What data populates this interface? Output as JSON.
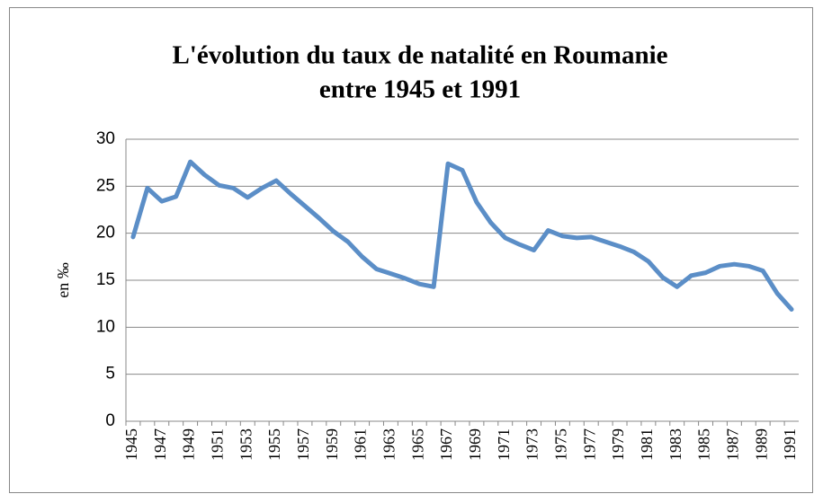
{
  "chart_data": {
    "type": "line",
    "title": [
      "L'évolution du taux de natalité en Roumanie",
      "entre 1945 et 1991"
    ],
    "y_label": "en ‰",
    "categories": [
      "1945",
      null,
      "1947",
      null,
      "1949",
      null,
      "1951",
      null,
      "1953",
      null,
      "1955",
      null,
      "1957",
      null,
      "1959",
      null,
      "1961",
      null,
      "1963",
      null,
      "1965",
      null,
      "1967",
      null,
      "1969",
      null,
      "1971",
      null,
      "1973",
      null,
      "1975",
      null,
      "1977",
      null,
      "1979",
      null,
      "1981",
      null,
      "1983",
      null,
      "1985",
      null,
      "1987",
      null,
      "1989",
      null,
      "1991"
    ],
    "values": [
      19.6,
      24.8,
      23.4,
      23.9,
      27.6,
      26.2,
      25.1,
      24.8,
      23.8,
      24.8,
      25.6,
      24.2,
      22.9,
      21.6,
      20.2,
      19.1,
      17.5,
      16.2,
      15.7,
      15.2,
      14.6,
      14.3,
      27.4,
      26.7,
      23.3,
      21.1,
      19.5,
      18.8,
      18.2,
      20.3,
      19.7,
      19.5,
      19.6,
      19.1,
      18.6,
      18.0,
      17.0,
      15.3,
      14.3,
      15.5,
      15.8,
      16.5,
      16.7,
      16.5,
      16.0,
      13.6,
      11.9
    ],
    "color": "#5b8ec7",
    "ylim": [
      0,
      30
    ],
    "yticks": [
      0,
      5,
      10,
      15,
      20,
      25,
      30
    ],
    "grid": true
  }
}
